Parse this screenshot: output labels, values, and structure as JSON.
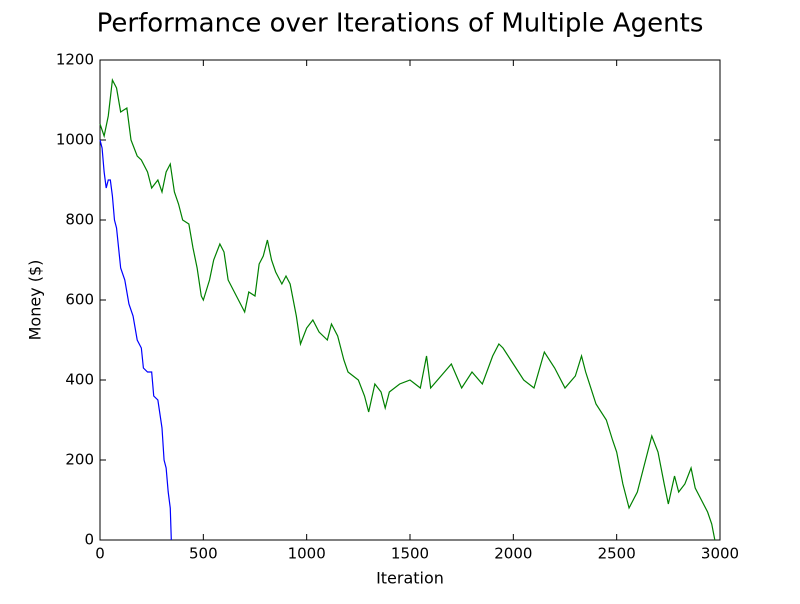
{
  "chart_data": {
    "type": "line",
    "title": "Performance over Iterations of Multiple Agents",
    "x_label": "Iteration",
    "y_label": "Money ($)",
    "series": [
      {
        "color": "#008000",
        "x": [
          0,
          20,
          40,
          60,
          80,
          100,
          130,
          150,
          180,
          200,
          230,
          250,
          280,
          300,
          320,
          340,
          360,
          380,
          400,
          430,
          450,
          470,
          490,
          500,
          530,
          550,
          580,
          600,
          620,
          650,
          680,
          700,
          720,
          750,
          770,
          790,
          810,
          830,
          850,
          880,
          900,
          920,
          950,
          970,
          1000,
          1030,
          1060,
          1100,
          1120,
          1150,
          1180,
          1200,
          1250,
          1280,
          1300,
          1330,
          1360,
          1380,
          1400,
          1450,
          1500,
          1550,
          1580,
          1600,
          1650,
          1700,
          1750,
          1800,
          1850,
          1900,
          1930,
          1950,
          2000,
          2050,
          2100,
          2150,
          2200,
          2250,
          2300,
          2330,
          2350,
          2400,
          2450,
          2480,
          2500,
          2530,
          2560,
          2600,
          2630,
          2670,
          2700,
          2730,
          2750,
          2780,
          2800,
          2830,
          2860,
          2880,
          2900,
          2940,
          2960,
          2975
        ],
        "values": [
          1040,
          1010,
          1060,
          1150,
          1130,
          1070,
          1080,
          1000,
          960,
          950,
          920,
          880,
          900,
          870,
          920,
          940,
          870,
          840,
          800,
          790,
          730,
          680,
          610,
          600,
          650,
          700,
          740,
          720,
          650,
          620,
          590,
          570,
          620,
          610,
          690,
          710,
          750,
          700,
          670,
          640,
          660,
          640,
          560,
          490,
          530,
          550,
          520,
          500,
          540,
          510,
          450,
          420,
          400,
          360,
          320,
          390,
          370,
          330,
          370,
          390,
          400,
          380,
          460,
          380,
          410,
          440,
          380,
          420,
          390,
          460,
          490,
          480,
          440,
          400,
          380,
          470,
          430,
          380,
          410,
          460,
          420,
          340,
          300,
          250,
          220,
          140,
          80,
          120,
          180,
          260,
          220,
          140,
          90,
          160,
          120,
          140,
          180,
          130,
          110,
          70,
          40,
          0
        ]
      },
      {
        "color": "#0000ff",
        "x": [
          0,
          10,
          20,
          30,
          40,
          50,
          60,
          70,
          80,
          100,
          120,
          140,
          160,
          180,
          200,
          210,
          230,
          250,
          260,
          280,
          300,
          310,
          320,
          330,
          340,
          345
        ],
        "values": [
          1000,
          980,
          920,
          880,
          900,
          900,
          860,
          800,
          780,
          680,
          650,
          590,
          560,
          500,
          480,
          430,
          420,
          420,
          360,
          350,
          280,
          200,
          180,
          120,
          80,
          0
        ]
      }
    ],
    "xlim": [
      0,
      3000
    ],
    "xticks": [
      0,
      500,
      1000,
      1500,
      2000,
      2500,
      3000
    ],
    "ylim": [
      0,
      1200
    ],
    "yticks": [
      0,
      200,
      400,
      600,
      800,
      1000,
      1200
    ]
  }
}
